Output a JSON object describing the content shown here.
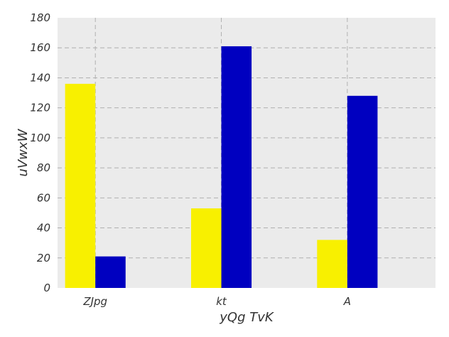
{
  "chart_data": {
    "type": "bar",
    "title": "",
    "xlabel": "yQg TvK",
    "ylabel": "uVwxW",
    "categories": [
      "ZJpg",
      "kt",
      "A"
    ],
    "series": [
      {
        "values": [
          136,
          53,
          32
        ],
        "color": "#f8f000"
      },
      {
        "values": [
          21,
          161,
          128
        ],
        "color": "#0000c0"
      }
    ],
    "ylim": [
      0,
      180
    ],
    "yticks": [
      0,
      20,
      40,
      60,
      80,
      100,
      120,
      140,
      160,
      180
    ],
    "grid": true,
    "legend": "none"
  },
  "colors": {
    "plot_background": "#ebebeb",
    "grid": "#b0b0b0"
  }
}
